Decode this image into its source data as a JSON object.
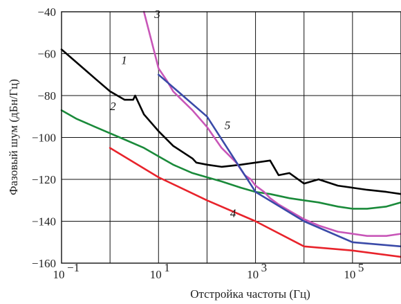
{
  "chart_data": {
    "type": "line",
    "xscale": "log",
    "xlim": [
      0.1,
      1000000
    ],
    "ylim": [
      -160,
      -40
    ],
    "grid": true,
    "xlabel": "Отстройка частоты (Гц)",
    "ylabel": "Фазовый шум (дБн/Гц)",
    "x_ticks": [
      0.1,
      10,
      1000,
      100000
    ],
    "x_tick_labels": [
      {
        "base": "10",
        "exp": "−1"
      },
      {
        "base": "10",
        "exp": "1"
      },
      {
        "base": "10",
        "exp": "3"
      },
      {
        "base": "10",
        "exp": "5"
      }
    ],
    "y_ticks": [
      -40,
      -60,
      -80,
      -100,
      -120,
      -140,
      -160
    ],
    "y_tick_labels": [
      "−40",
      "−60",
      "−80",
      "−100",
      "−120",
      "−140",
      "−160"
    ],
    "series": [
      {
        "label": "1",
        "color": "#000000",
        "x": [
          0.1,
          0.2,
          0.5,
          1,
          2,
          3,
          3.3,
          5,
          10,
          20,
          50,
          60,
          100,
          200,
          500,
          1000,
          2000,
          3000,
          5000,
          10000,
          20000,
          50000,
          100000,
          200000,
          500000,
          1000000
        ],
        "y": [
          -58,
          -64,
          -72,
          -78,
          -82,
          -82,
          -80,
          -89,
          -97,
          -104,
          -110,
          -112,
          -113,
          -114,
          -113,
          -112,
          -111,
          -118,
          -117,
          -122,
          -120,
          -123,
          -124,
          -125,
          -126,
          -127
        ]
      },
      {
        "label": "2",
        "color": "#1a8a3a",
        "x": [
          0.1,
          0.2,
          0.5,
          1,
          2,
          5,
          10,
          20,
          50,
          100,
          200,
          500,
          1000,
          2000,
          5000,
          10000,
          20000,
          50000,
          100000,
          200000,
          500000,
          1000000
        ],
        "y": [
          -87,
          -91,
          -95,
          -98,
          -101,
          -105,
          -109,
          -113,
          -117,
          -119,
          -121,
          -124,
          -126,
          -127,
          -129,
          -130,
          -131,
          -133,
          -134,
          -134,
          -133,
          -131
        ]
      },
      {
        "label": "3",
        "color": "#c856b8",
        "x": [
          5,
          7,
          10,
          15,
          20,
          30,
          50,
          100,
          200,
          400,
          600,
          800,
          1000,
          1500,
          2000,
          3000,
          5000,
          10000,
          20000,
          50000,
          100000,
          200000,
          500000,
          1000000
        ],
        "y": [
          -40,
          -53,
          -67,
          -73,
          -78,
          -82,
          -87,
          -95,
          -105,
          -112,
          -118,
          -120,
          -123,
          -126,
          -129,
          -132,
          -135,
          -139,
          -142,
          -145,
          -146,
          -147,
          -147,
          -146
        ]
      },
      {
        "label": "4",
        "color": "#e8232b",
        "x": [
          1,
          10,
          100,
          1000,
          10000,
          100000,
          1000000
        ],
        "y": [
          -105,
          -119,
          -130,
          -140,
          -152,
          -154,
          -157
        ]
      },
      {
        "label": "5",
        "color": "#3a4aa8",
        "x": [
          10,
          100,
          1000,
          10000,
          100000,
          1000000
        ],
        "y": [
          -70,
          -90,
          -126,
          -140,
          -150,
          -152
        ]
      }
    ]
  }
}
